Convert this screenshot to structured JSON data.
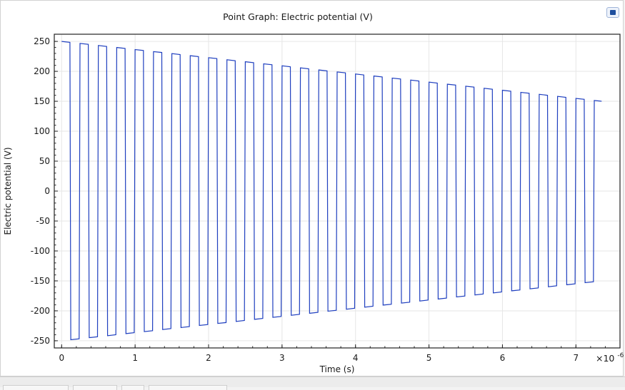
{
  "chart_data": {
    "type": "line",
    "title": "Point Graph: Electric potential (V)",
    "xlabel": "Time (s)",
    "ylabel": "Electric potential (V)",
    "x_multiplier_label": "×10",
    "x_multiplier_exponent": "-6",
    "xlim": [
      -0.1,
      7.6
    ],
    "ylim": [
      -262,
      262
    ],
    "x_ticks": [
      0,
      1,
      2,
      3,
      4,
      5,
      6,
      7
    ],
    "x_tick_labels": [
      "0",
      "1",
      "2",
      "3",
      "4",
      "5",
      "6",
      "7"
    ],
    "y_ticks": [
      250,
      200,
      150,
      100,
      50,
      0,
      -50,
      -100,
      -150,
      -200,
      -250
    ],
    "y_tick_labels": [
      "250",
      "200",
      "150",
      "100",
      "50",
      "0",
      "-50",
      "-100",
      "-150",
      "-200",
      "-250"
    ],
    "grid": true,
    "legend": "none",
    "series": [
      {
        "color": "#1f3fbf",
        "waveform": "square",
        "period": 0.25,
        "duty": 0.5,
        "t_start": 0,
        "t_end": 7.35,
        "amplitude_start": 250,
        "amplitude_end": 150
      }
    ]
  },
  "colors": {
    "grid": "#e6e6e6",
    "axis": "#222222",
    "line": "#1f3fbf"
  },
  "icons": {
    "corner_button": "plot-window-icon"
  }
}
